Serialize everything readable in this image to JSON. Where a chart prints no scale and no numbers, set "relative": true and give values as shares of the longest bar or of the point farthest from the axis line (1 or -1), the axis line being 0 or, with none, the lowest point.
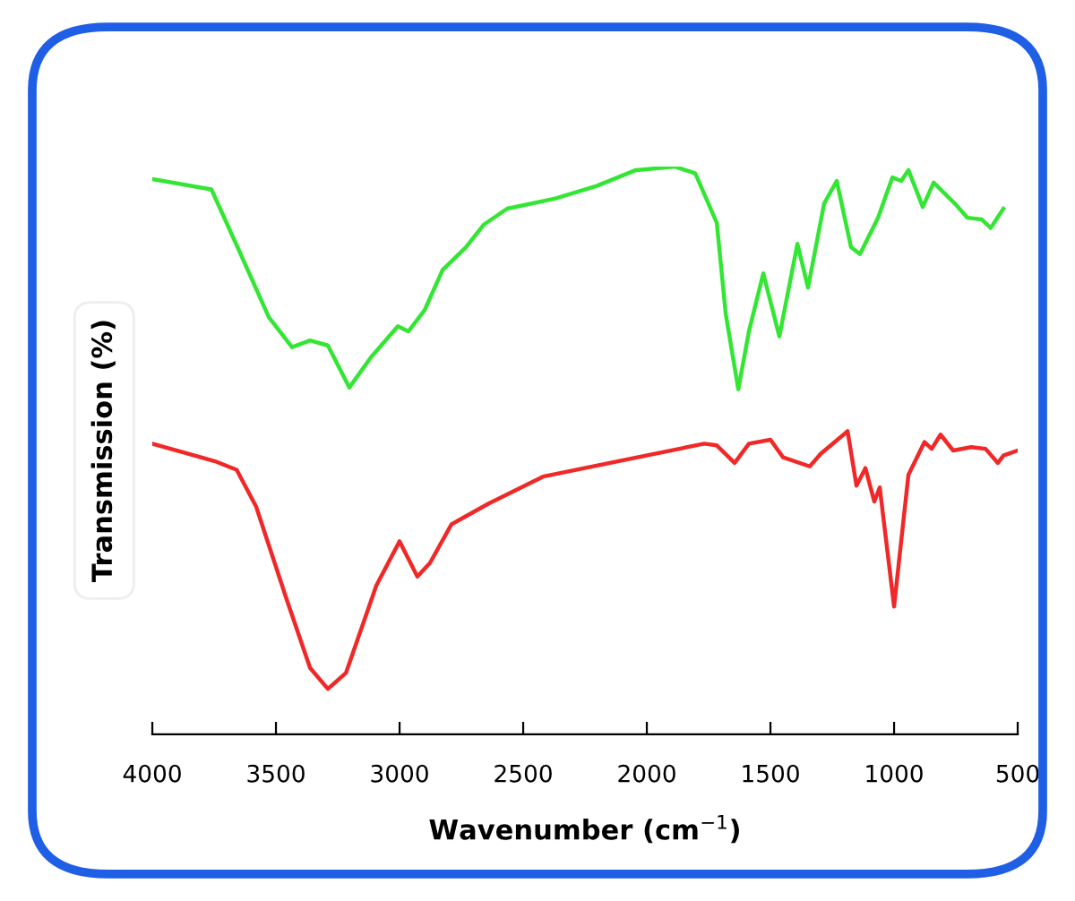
{
  "chart_data": {
    "type": "line",
    "relative": true,
    "xlabel": "Wavenumber (cm$^{−1}$)",
    "ylabel": "Transmission (%)",
    "xlim": [
      4000,
      500
    ],
    "xticks": [
      4000,
      3500,
      3000,
      2500,
      2000,
      1500,
      1000,
      500
    ],
    "tick_labels": "x",
    "grid": false,
    "legend": false,
    "series": [
      {
        "color": "#33e633",
        "x": [
          4000,
          3761,
          3652,
          3529,
          3435,
          3362,
          3290,
          3203,
          3116,
          3007,
          2964,
          2899,
          2826,
          2732,
          2659,
          2565,
          2370,
          2203,
          2044,
          1884,
          1804,
          1717,
          1681,
          1630,
          1587,
          1529,
          1464,
          1391,
          1348,
          1283,
          1232,
          1174,
          1138,
          1065,
          1007,
          971,
          942,
          884,
          840,
          754,
          703,
          645,
          609,
          558
        ],
        "values": [
          0.978,
          0.96,
          0.855,
          0.735,
          0.682,
          0.694,
          0.685,
          0.611,
          0.664,
          0.719,
          0.71,
          0.747,
          0.818,
          0.858,
          0.898,
          0.926,
          0.944,
          0.966,
          0.994,
          1.0,
          0.988,
          0.901,
          0.741,
          0.608,
          0.71,
          0.812,
          0.701,
          0.864,
          0.787,
          0.935,
          0.975,
          0.858,
          0.846,
          0.91,
          0.981,
          0.975,
          0.994,
          0.929,
          0.972,
          0.935,
          0.91,
          0.907,
          0.892,
          0.926
        ]
      },
      {
        "color": "#f02828",
        "x": [
          4000,
          3746,
          3659,
          3580,
          3457,
          3362,
          3290,
          3217,
          3094,
          3000,
          2928,
          2877,
          2790,
          2638,
          2420,
          1768,
          1717,
          1645,
          1587,
          1500,
          1449,
          1341,
          1297,
          1188,
          1152,
          1116,
          1080,
          1058,
          1000,
          942,
          877,
          848,
          812,
          761,
          688,
          630,
          580,
          558,
          500
        ],
        "values": [
          0.512,
          0.481,
          0.466,
          0.401,
          0.238,
          0.117,
          0.08,
          0.108,
          0.262,
          0.34,
          0.278,
          0.302,
          0.37,
          0.407,
          0.454,
          0.512,
          0.509,
          0.478,
          0.512,
          0.519,
          0.488,
          0.472,
          0.494,
          0.534,
          0.438,
          0.469,
          0.41,
          0.435,
          0.225,
          0.457,
          0.515,
          0.503,
          0.528,
          0.5,
          0.506,
          0.503,
          0.478,
          0.491,
          0.5
        ]
      }
    ]
  }
}
